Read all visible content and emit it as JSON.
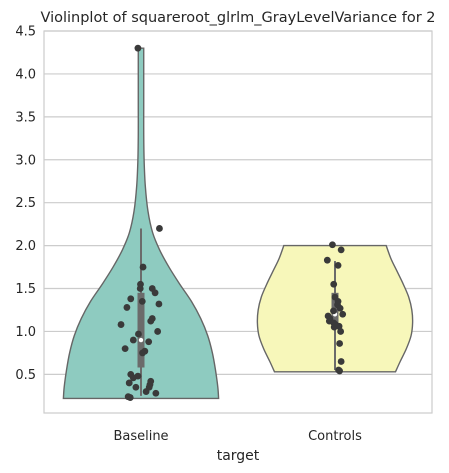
{
  "chart_data": {
    "type": "violin",
    "title": "Violinplot of squareroot_glrlm_GrayLevelVariance for 2",
    "xlabel": "target",
    "ylabel": "",
    "categories": [
      "Baseline",
      "Controls"
    ],
    "ylim": [
      0.05,
      4.5
    ],
    "yticks": [
      0.5,
      1.0,
      1.5,
      2.0,
      2.5,
      3.0,
      3.5,
      4.0,
      4.5
    ],
    "ytick_labels": [
      "0.5",
      "1.0",
      "1.5",
      "2.0",
      "2.5",
      "3.0",
      "3.5",
      "4.0",
      "4.5"
    ],
    "grid": true,
    "series": [
      {
        "category": "Baseline",
        "color": "#8ECBC0",
        "box": {
          "whisker_low": 0.25,
          "q1": 0.58,
          "median": 0.9,
          "q3": 1.45,
          "whisker_high": 2.2
        },
        "density": [
          {
            "y": 0.22,
            "w": 1.0
          },
          {
            "y": 0.35,
            "w": 0.99
          },
          {
            "y": 0.55,
            "w": 0.96
          },
          {
            "y": 0.75,
            "w": 0.92
          },
          {
            "y": 0.95,
            "w": 0.86
          },
          {
            "y": 1.15,
            "w": 0.77
          },
          {
            "y": 1.35,
            "w": 0.65
          },
          {
            "y": 1.55,
            "w": 0.5
          },
          {
            "y": 1.75,
            "w": 0.36
          },
          {
            "y": 1.95,
            "w": 0.24
          },
          {
            "y": 2.15,
            "w": 0.15
          },
          {
            "y": 2.4,
            "w": 0.09
          },
          {
            "y": 2.7,
            "w": 0.055
          },
          {
            "y": 3.0,
            "w": 0.04
          },
          {
            "y": 3.3,
            "w": 0.035
          },
          {
            "y": 3.6,
            "w": 0.035
          },
          {
            "y": 3.9,
            "w": 0.035
          },
          {
            "y": 4.15,
            "w": 0.035
          },
          {
            "y": 4.3,
            "w": 0.035
          }
        ],
        "points": [
          {
            "y": 4.3,
            "dx": -0.12
          },
          {
            "y": 2.2,
            "dx": 0.72
          },
          {
            "y": 1.75,
            "dx": 0.08
          },
          {
            "y": 1.55,
            "dx": -0.02
          },
          {
            "y": 1.5,
            "dx": -0.03
          },
          {
            "y": 1.5,
            "dx": 0.44
          },
          {
            "y": 1.45,
            "dx": 0.55
          },
          {
            "y": 1.38,
            "dx": -0.4
          },
          {
            "y": 1.35,
            "dx": 0.05
          },
          {
            "y": 1.32,
            "dx": 0.7
          },
          {
            "y": 1.28,
            "dx": -0.55
          },
          {
            "y": 1.15,
            "dx": 0.44
          },
          {
            "y": 1.12,
            "dx": 0.38
          },
          {
            "y": 1.08,
            "dx": -0.78
          },
          {
            "y": 1.0,
            "dx": 0.65
          },
          {
            "y": 0.97,
            "dx": -0.1
          },
          {
            "y": 0.9,
            "dx": -0.3
          },
          {
            "y": 0.88,
            "dx": 0.3
          },
          {
            "y": 0.8,
            "dx": -0.62
          },
          {
            "y": 0.77,
            "dx": 0.15
          },
          {
            "y": 0.75,
            "dx": 0.06
          },
          {
            "y": 0.5,
            "dx": -0.4
          },
          {
            "y": 0.48,
            "dx": -0.12
          },
          {
            "y": 0.46,
            "dx": -0.3
          },
          {
            "y": 0.42,
            "dx": 0.38
          },
          {
            "y": 0.4,
            "dx": -0.46
          },
          {
            "y": 0.38,
            "dx": 0.35
          },
          {
            "y": 0.35,
            "dx": 0.32
          },
          {
            "y": 0.35,
            "dx": -0.2
          },
          {
            "y": 0.3,
            "dx": 0.2
          },
          {
            "y": 0.28,
            "dx": 0.58
          },
          {
            "y": 0.24,
            "dx": -0.5
          },
          {
            "y": 0.23,
            "dx": -0.42
          }
        ]
      },
      {
        "category": "Controls",
        "color": "#F7F7BA",
        "box": {
          "whisker_low": 0.55,
          "q1": 1.07,
          "median": 1.2,
          "q3": 1.45,
          "whisker_high": 1.82
        },
        "density": [
          {
            "y": 0.53,
            "w": 0.78
          },
          {
            "y": 0.65,
            "w": 0.84
          },
          {
            "y": 0.8,
            "w": 0.92
          },
          {
            "y": 0.95,
            "w": 0.98
          },
          {
            "y": 1.1,
            "w": 1.0
          },
          {
            "y": 1.25,
            "w": 0.99
          },
          {
            "y": 1.4,
            "w": 0.95
          },
          {
            "y": 1.55,
            "w": 0.88
          },
          {
            "y": 1.7,
            "w": 0.8
          },
          {
            "y": 1.85,
            "w": 0.72
          },
          {
            "y": 2.0,
            "w": 0.66
          }
        ],
        "points": [
          {
            "y": 2.01,
            "dx": -0.1
          },
          {
            "y": 1.95,
            "dx": 0.24
          },
          {
            "y": 1.83,
            "dx": -0.3
          },
          {
            "y": 1.77,
            "dx": 0.12
          },
          {
            "y": 1.55,
            "dx": -0.05
          },
          {
            "y": 1.4,
            "dx": 0.0
          },
          {
            "y": 1.35,
            "dx": 0.12
          },
          {
            "y": 1.31,
            "dx": 0.1
          },
          {
            "y": 1.27,
            "dx": 0.2
          },
          {
            "y": 1.24,
            "dx": -0.06
          },
          {
            "y": 1.2,
            "dx": 0.3
          },
          {
            "y": 1.18,
            "dx": -0.27
          },
          {
            "y": 1.15,
            "dx": -0.2
          },
          {
            "y": 1.12,
            "dx": -0.22
          },
          {
            "y": 1.1,
            "dx": -0.05
          },
          {
            "y": 1.08,
            "dx": 0.02
          },
          {
            "y": 1.06,
            "dx": 0.16
          },
          {
            "y": 1.05,
            "dx": -0.03
          },
          {
            "y": 1.0,
            "dx": 0.22
          },
          {
            "y": 0.86,
            "dx": 0.18
          },
          {
            "y": 0.65,
            "dx": 0.24
          },
          {
            "y": 0.55,
            "dx": 0.14
          },
          {
            "y": 0.54,
            "dx": 0.18
          }
        ]
      }
    ]
  }
}
